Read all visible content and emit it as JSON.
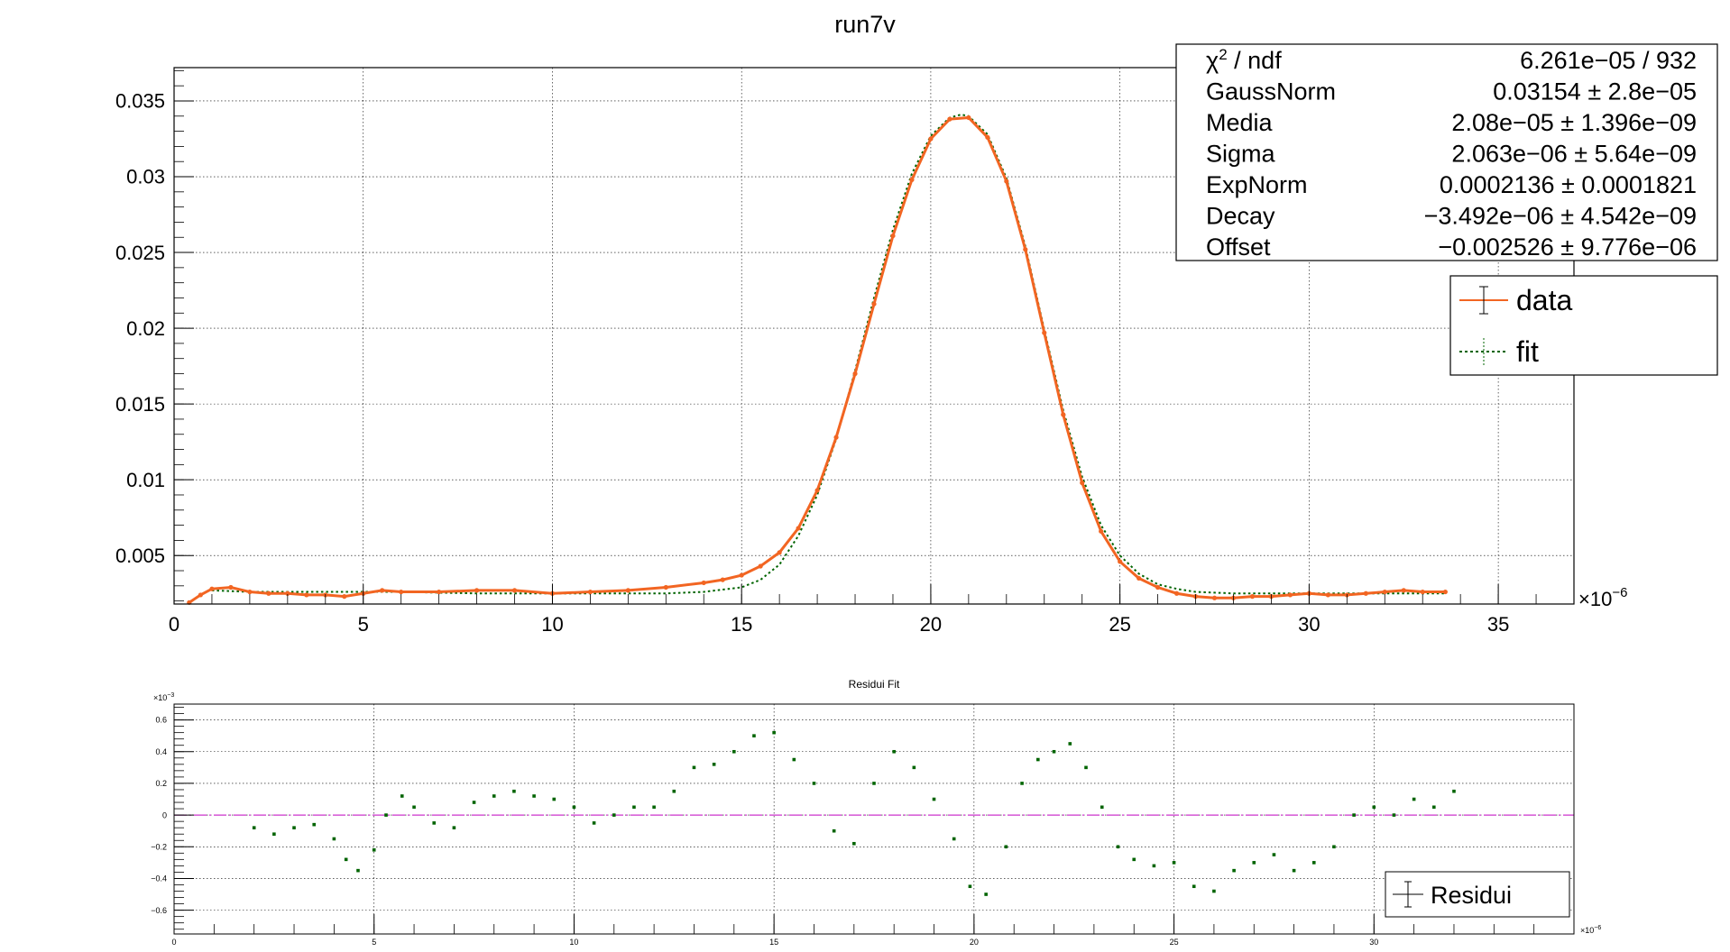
{
  "colors": {
    "data": "#f26522",
    "fit": "#006400",
    "residuals": "#006400",
    "zero_line": "#cc33cc",
    "grid": "#000000",
    "frame": "#000000"
  },
  "chart_data": [
    {
      "type": "line",
      "title": "run7v",
      "xlabel": "",
      "ylabel": "",
      "x_exponent_label": "×10",
      "x_exponent_power": "−6",
      "xlim": [
        0,
        37
      ],
      "ylim": [
        0.0018,
        0.0372
      ],
      "grid": true,
      "x_ticks": [
        0,
        5,
        10,
        15,
        20,
        25,
        30,
        35
      ],
      "x_tick_labels": [
        "0",
        "5",
        "10",
        "15",
        "20",
        "25",
        "30",
        "35"
      ],
      "y_ticks": [
        0.005,
        0.01,
        0.015,
        0.02,
        0.025,
        0.03,
        0.035
      ],
      "y_tick_labels": [
        "0.005",
        "0.01",
        "0.015",
        "0.02",
        "0.025",
        "0.03",
        "0.035"
      ],
      "stats_box": {
        "rows": [
          {
            "name": "ndf_row",
            "label_sym": "χ",
            "label_sup": "2",
            "label_rest": " / ndf",
            "value": "6.261e−05 / 932"
          },
          {
            "name": "gaussnorm",
            "label": "GaussNorm",
            "value": "0.03154 ± 2.8e−05"
          },
          {
            "name": "media",
            "label": "Media",
            "value": "2.08e−05 ± 1.396e−09"
          },
          {
            "name": "sigma",
            "label": "Sigma",
            "value": "2.063e−06 ± 5.64e−09"
          },
          {
            "name": "expnorm",
            "label": "ExpNorm",
            "value": "0.0002136 ± 0.0001821"
          },
          {
            "name": "decay",
            "label": "Decay",
            "value": "−3.492e−06 ± 4.542e−09"
          },
          {
            "name": "offset",
            "label": "Offset",
            "value": "−0.002526 ± 9.776e−06"
          }
        ]
      },
      "legend": {
        "position": "top-right",
        "entries": [
          "data",
          "fit"
        ]
      },
      "series": [
        {
          "name": "data",
          "x": [
            0.4,
            0.7,
            1.0,
            1.5,
            2.0,
            2.5,
            3.0,
            3.5,
            4.0,
            4.5,
            5.0,
            5.5,
            6.0,
            7.0,
            8.0,
            9.0,
            10.0,
            11.0,
            12.0,
            13.0,
            14.0,
            14.5,
            15.0,
            15.5,
            16.0,
            16.5,
            17.0,
            17.5,
            18.0,
            18.5,
            19.0,
            19.5,
            20.0,
            20.5,
            21.0,
            21.5,
            22.0,
            22.5,
            23.0,
            23.5,
            24.0,
            24.5,
            25.0,
            25.5,
            26.0,
            26.5,
            27.0,
            27.5,
            28.0,
            28.5,
            29.0,
            29.5,
            30.0,
            30.5,
            31.0,
            31.5,
            32.0,
            32.5,
            33.0,
            33.6
          ],
          "values": [
            0.0019,
            0.0024,
            0.0028,
            0.0029,
            0.0026,
            0.0025,
            0.0025,
            0.0024,
            0.0024,
            0.0023,
            0.0025,
            0.0027,
            0.0026,
            0.0026,
            0.0027,
            0.0027,
            0.0025,
            0.0026,
            0.0027,
            0.0029,
            0.0032,
            0.0034,
            0.0037,
            0.0043,
            0.0052,
            0.0068,
            0.0093,
            0.0128,
            0.017,
            0.0216,
            0.0261,
            0.0298,
            0.0325,
            0.0338,
            0.0339,
            0.0326,
            0.0297,
            0.0252,
            0.0197,
            0.0143,
            0.0098,
            0.0066,
            0.0046,
            0.0035,
            0.0029,
            0.0025,
            0.0023,
            0.0022,
            0.0022,
            0.0023,
            0.0023,
            0.0024,
            0.0025,
            0.0024,
            0.0024,
            0.0025,
            0.0026,
            0.0027,
            0.0026,
            0.0026
          ]
        },
        {
          "name": "fit",
          "x": [
            1.0,
            2.0,
            4.0,
            6.0,
            8.0,
            10.0,
            12.0,
            13.0,
            14.0,
            15.0,
            15.5,
            16.0,
            16.5,
            17.0,
            17.5,
            18.0,
            18.5,
            19.0,
            19.5,
            20.0,
            20.5,
            20.8,
            21.0,
            21.5,
            22.0,
            22.5,
            23.0,
            23.5,
            24.0,
            24.5,
            25.0,
            25.5,
            26.0,
            26.5,
            27.0,
            28.0,
            29.0,
            30.0,
            31.0,
            32.0,
            33.0,
            33.6
          ],
          "values": [
            0.0027,
            0.0026,
            0.0026,
            0.0026,
            0.0025,
            0.0025,
            0.0025,
            0.0025,
            0.0026,
            0.0029,
            0.0034,
            0.0044,
            0.0063,
            0.009,
            0.0127,
            0.0172,
            0.022,
            0.0265,
            0.0302,
            0.0327,
            0.0339,
            0.0341,
            0.034,
            0.0328,
            0.0299,
            0.0254,
            0.0199,
            0.0146,
            0.0102,
            0.007,
            0.005,
            0.0038,
            0.0031,
            0.0028,
            0.0026,
            0.0025,
            0.0025,
            0.0025,
            0.0025,
            0.0025,
            0.0025,
            0.0025
          ]
        }
      ]
    },
    {
      "type": "scatter",
      "title": "Residui Fit",
      "xlabel": "",
      "ylabel": "",
      "y_exponent_label": "×10",
      "y_exponent_power": "−3",
      "x_exponent_label": "×10",
      "x_exponent_power": "−6",
      "xlim": [
        0,
        35
      ],
      "ylim": [
        -0.75,
        0.7
      ],
      "grid": true,
      "x_ticks": [
        0,
        5,
        10,
        15,
        20,
        25,
        30
      ],
      "x_tick_labels": [
        "0",
        "5",
        "10",
        "15",
        "20",
        "25",
        "30"
      ],
      "y_ticks": [
        -0.6,
        -0.4,
        -0.2,
        0,
        0.2,
        0.4,
        0.6
      ],
      "y_tick_labels": [
        "−0.6",
        "−0.4",
        "−0.2",
        "0",
        "0.2",
        "0.4",
        "0.6"
      ],
      "legend": {
        "position": "bottom-right",
        "entries": [
          "Residui"
        ]
      },
      "series": [
        {
          "name": "Residui",
          "x": [
            2.0,
            2.5,
            3.0,
            3.5,
            4.0,
            4.3,
            4.6,
            5.0,
            5.3,
            5.7,
            6.0,
            6.5,
            7.0,
            7.5,
            8.0,
            8.5,
            9.0,
            9.5,
            10.0,
            10.5,
            11.0,
            11.5,
            12.0,
            12.5,
            13.0,
            13.5,
            14.0,
            14.5,
            15.0,
            15.5,
            16.0,
            16.5,
            17.0,
            17.5,
            18.0,
            18.5,
            19.0,
            19.5,
            19.9,
            20.3,
            20.8,
            21.2,
            21.6,
            22.0,
            22.4,
            22.8,
            23.2,
            23.6,
            24.0,
            24.5,
            25.0,
            25.5,
            26.0,
            26.5,
            27.0,
            27.5,
            28.0,
            28.5,
            29.0,
            29.5,
            30.0,
            30.5,
            31.0,
            31.5,
            32.0
          ],
          "values": [
            -0.08,
            -0.12,
            -0.08,
            -0.06,
            -0.15,
            -0.28,
            -0.35,
            -0.22,
            0.0,
            0.12,
            0.05,
            -0.05,
            -0.08,
            0.08,
            0.12,
            0.15,
            0.12,
            0.1,
            0.05,
            -0.05,
            0.0,
            0.05,
            0.05,
            0.15,
            0.3,
            0.32,
            0.4,
            0.5,
            0.52,
            0.35,
            0.2,
            -0.1,
            -0.18,
            0.2,
            0.4,
            0.3,
            0.1,
            -0.15,
            -0.45,
            -0.5,
            -0.2,
            0.2,
            0.35,
            0.4,
            0.45,
            0.3,
            0.05,
            -0.2,
            -0.28,
            -0.32,
            -0.3,
            -0.45,
            -0.48,
            -0.35,
            -0.3,
            -0.25,
            -0.35,
            -0.3,
            -0.2,
            0.0,
            0.05,
            0.0,
            0.1,
            0.05,
            0.15
          ]
        },
        {
          "name": "",
          "x": [
            0,
            35
          ],
          "values": [
            0,
            0
          ]
        }
      ]
    }
  ]
}
